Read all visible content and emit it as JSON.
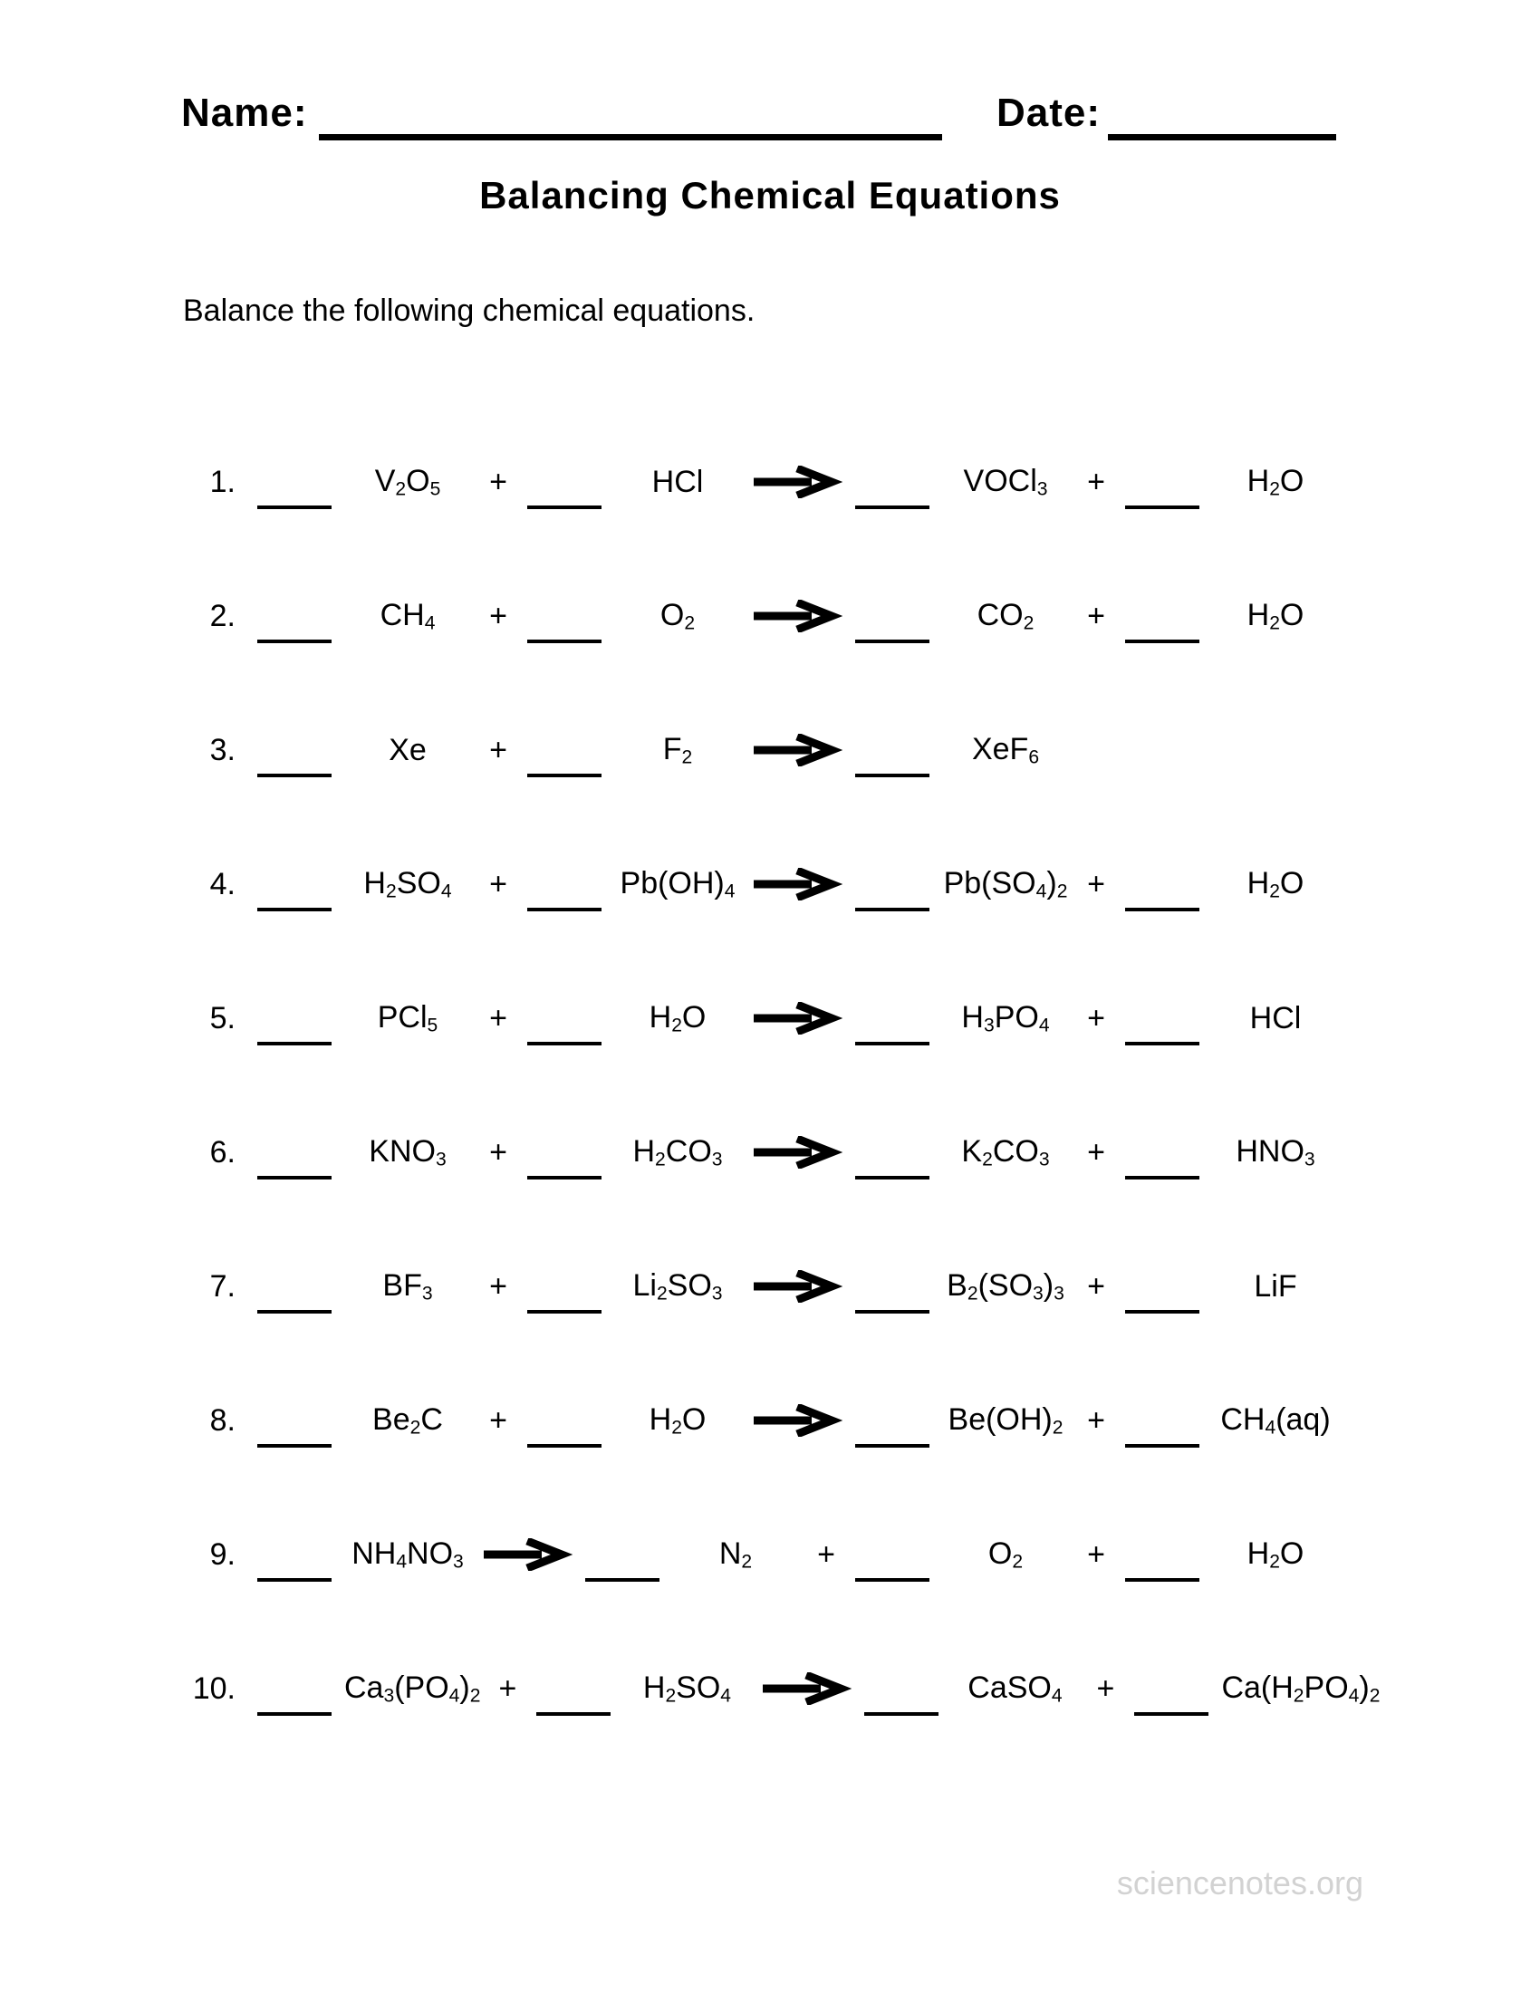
{
  "page": {
    "background_color": "#ffffff",
    "text_color": "#000000"
  },
  "header": {
    "name_label": "Name:",
    "date_label": "Date:"
  },
  "title": "Balancing Chemical Equations",
  "instruction": "Balance the following chemical equations.",
  "symbols": {
    "plus": "+",
    "arrow_icon": "right-arrow",
    "blank": "____"
  },
  "equations": [
    {
      "number": "1.",
      "terms": [
        {
          "type": "blank"
        },
        {
          "type": "formula",
          "formula": "V_2O_5"
        },
        {
          "type": "plus"
        },
        {
          "type": "blank"
        },
        {
          "type": "formula",
          "formula": "HCl"
        },
        {
          "type": "arrow"
        },
        {
          "type": "blank"
        },
        {
          "type": "formula",
          "formula": "VOCl_3"
        },
        {
          "type": "plus"
        },
        {
          "type": "blank"
        },
        {
          "type": "formula",
          "formula": "H_2O"
        }
      ]
    },
    {
      "number": "2.",
      "terms": [
        {
          "type": "blank"
        },
        {
          "type": "formula",
          "formula": "CH_4"
        },
        {
          "type": "plus"
        },
        {
          "type": "blank"
        },
        {
          "type": "formula",
          "formula": "O_2"
        },
        {
          "type": "arrow"
        },
        {
          "type": "blank"
        },
        {
          "type": "formula",
          "formula": "CO_2"
        },
        {
          "type": "plus"
        },
        {
          "type": "blank"
        },
        {
          "type": "formula",
          "formula": "H_2O"
        }
      ]
    },
    {
      "number": "3.",
      "terms": [
        {
          "type": "blank"
        },
        {
          "type": "formula",
          "formula": "Xe"
        },
        {
          "type": "plus"
        },
        {
          "type": "blank"
        },
        {
          "type": "formula",
          "formula": "F_2"
        },
        {
          "type": "arrow"
        },
        {
          "type": "blank"
        },
        {
          "type": "formula",
          "formula": "XeF_6"
        }
      ]
    },
    {
      "number": "4.",
      "terms": [
        {
          "type": "blank"
        },
        {
          "type": "formula",
          "formula": "H_2SO_4"
        },
        {
          "type": "plus"
        },
        {
          "type": "blank"
        },
        {
          "type": "formula",
          "formula": "Pb(OH)_4"
        },
        {
          "type": "arrow"
        },
        {
          "type": "blank"
        },
        {
          "type": "formula",
          "formula": "Pb(SO_4)_2"
        },
        {
          "type": "plus"
        },
        {
          "type": "blank"
        },
        {
          "type": "formula",
          "formula": "H_2O"
        }
      ]
    },
    {
      "number": "5.",
      "terms": [
        {
          "type": "blank"
        },
        {
          "type": "formula",
          "formula": "PCl_5"
        },
        {
          "type": "plus"
        },
        {
          "type": "blank"
        },
        {
          "type": "formula",
          "formula": "H_2O"
        },
        {
          "type": "arrow"
        },
        {
          "type": "blank"
        },
        {
          "type": "formula",
          "formula": "H_3PO_4"
        },
        {
          "type": "plus"
        },
        {
          "type": "blank"
        },
        {
          "type": "formula",
          "formula": "HCl"
        }
      ]
    },
    {
      "number": "6.",
      "terms": [
        {
          "type": "blank"
        },
        {
          "type": "formula",
          "formula": "KNO_3"
        },
        {
          "type": "plus"
        },
        {
          "type": "blank"
        },
        {
          "type": "formula",
          "formula": "H_2CO_3"
        },
        {
          "type": "arrow"
        },
        {
          "type": "blank"
        },
        {
          "type": "formula",
          "formula": "K_2CO_3"
        },
        {
          "type": "plus"
        },
        {
          "type": "blank"
        },
        {
          "type": "formula",
          "formula": "HNO_3"
        }
      ]
    },
    {
      "number": "7.",
      "terms": [
        {
          "type": "blank"
        },
        {
          "type": "formula",
          "formula": "BF_3"
        },
        {
          "type": "plus"
        },
        {
          "type": "blank"
        },
        {
          "type": "formula",
          "formula": "Li_2SO_3"
        },
        {
          "type": "arrow"
        },
        {
          "type": "blank"
        },
        {
          "type": "formula",
          "formula": "B_2(SO_3)_3"
        },
        {
          "type": "plus"
        },
        {
          "type": "blank"
        },
        {
          "type": "formula",
          "formula": "LiF"
        }
      ]
    },
    {
      "number": "8.",
      "terms": [
        {
          "type": "blank"
        },
        {
          "type": "formula",
          "formula": "Be_2C"
        },
        {
          "type": "plus"
        },
        {
          "type": "blank"
        },
        {
          "type": "formula",
          "formula": "H_2O"
        },
        {
          "type": "arrow"
        },
        {
          "type": "blank"
        },
        {
          "type": "formula",
          "formula": "Be(OH)_2"
        },
        {
          "type": "plus"
        },
        {
          "type": "blank"
        },
        {
          "type": "formula",
          "formula": "CH_4(aq)"
        }
      ]
    },
    {
      "number": "9.",
      "terms": [
        {
          "type": "blank"
        },
        {
          "type": "formula",
          "formula": "NH_4NO_3"
        },
        {
          "type": "arrow"
        },
        {
          "type": "blank"
        },
        {
          "type": "formula",
          "formula": "N_2"
        },
        {
          "type": "plus"
        },
        {
          "type": "blank"
        },
        {
          "type": "formula",
          "formula": "O_2"
        },
        {
          "type": "plus"
        },
        {
          "type": "blank"
        },
        {
          "type": "formula",
          "formula": "H_2O"
        }
      ]
    },
    {
      "number": "10.",
      "terms": [
        {
          "type": "blank"
        },
        {
          "type": "formula",
          "formula": "Ca_3(PO_4)_2"
        },
        {
          "type": "plus"
        },
        {
          "type": "blank"
        },
        {
          "type": "formula",
          "formula": "H_2SO_4"
        },
        {
          "type": "arrow"
        },
        {
          "type": "blank"
        },
        {
          "type": "formula",
          "formula": "CaSO_4"
        },
        {
          "type": "plus"
        },
        {
          "type": "blank"
        },
        {
          "type": "formula",
          "formula": "Ca(H_2PO_4)_2"
        }
      ]
    }
  ],
  "footer": {
    "watermark": "sciencenotes.org",
    "color": "#d2d2d2"
  }
}
